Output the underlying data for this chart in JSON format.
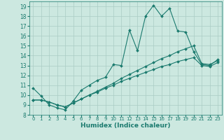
{
  "xlabel": "Humidex (Indice chaleur)",
  "xlim": [
    -0.5,
    23.5
  ],
  "ylim": [
    8,
    19.5
  ],
  "xticks": [
    0,
    1,
    2,
    3,
    4,
    5,
    6,
    7,
    8,
    9,
    10,
    11,
    12,
    13,
    14,
    15,
    16,
    17,
    18,
    19,
    20,
    21,
    22,
    23
  ],
  "yticks": [
    8,
    9,
    10,
    11,
    12,
    13,
    14,
    15,
    16,
    17,
    18,
    19
  ],
  "bg_color": "#cce8e0",
  "grid_color": "#aaccC4",
  "line_color": "#1a7a6e",
  "line1_x": [
    0,
    1,
    2,
    3,
    4,
    5,
    6,
    7,
    8,
    9,
    10,
    11,
    12,
    13,
    14,
    15,
    16,
    17,
    18,
    19,
    20,
    21,
    22,
    23
  ],
  "line1_y": [
    10.7,
    9.9,
    9.0,
    8.7,
    8.5,
    9.4,
    10.5,
    11.0,
    11.5,
    11.8,
    13.1,
    13.0,
    16.6,
    14.5,
    18.0,
    19.1,
    18.0,
    18.8,
    16.5,
    16.4,
    14.4,
    13.1,
    13.0,
    13.6
  ],
  "line2_x": [
    0,
    1,
    2,
    3,
    4,
    5,
    6,
    7,
    8,
    9,
    10,
    11,
    12,
    13,
    14,
    15,
    16,
    17,
    18,
    19,
    20,
    21,
    22,
    23
  ],
  "line2_y": [
    9.5,
    9.5,
    9.3,
    9.0,
    8.8,
    9.2,
    9.6,
    10.0,
    10.4,
    10.8,
    11.2,
    11.7,
    12.1,
    12.5,
    12.9,
    13.3,
    13.7,
    14.0,
    14.4,
    14.7,
    15.0,
    13.2,
    13.1,
    13.5
  ],
  "line3_x": [
    0,
    1,
    2,
    3,
    4,
    5,
    6,
    7,
    8,
    9,
    10,
    11,
    12,
    13,
    14,
    15,
    16,
    17,
    18,
    19,
    20,
    21,
    22,
    23
  ],
  "line3_y": [
    9.5,
    9.5,
    9.3,
    9.0,
    8.8,
    9.2,
    9.6,
    10.0,
    10.3,
    10.7,
    11.0,
    11.4,
    11.7,
    12.0,
    12.3,
    12.6,
    12.9,
    13.1,
    13.4,
    13.6,
    13.8,
    13.0,
    12.9,
    13.3
  ],
  "marker": "D",
  "marker_size": 2.0,
  "linewidth": 0.8
}
